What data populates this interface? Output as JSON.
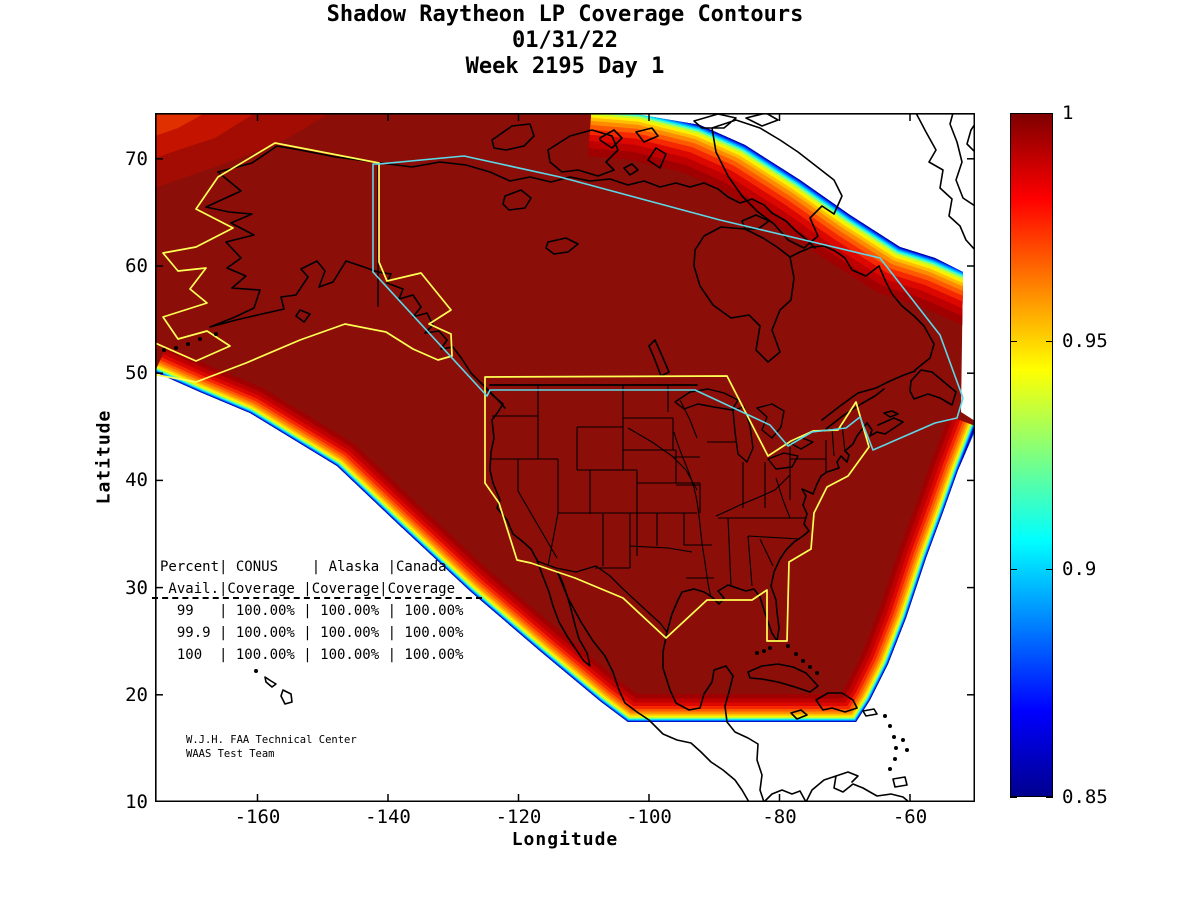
{
  "title": {
    "line1": "Shadow Raytheon LP Coverage Contours",
    "line2": "01/31/22",
    "line3": "Week 2195 Day 1"
  },
  "axes": {
    "xlabel": "Longitude",
    "ylabel": "Latitude"
  },
  "footer": {
    "line1": "W.J.H. FAA Technical Center",
    "line2": "WAAS Test Team"
  },
  "table": {
    "lines_header": [
      "Percent| CONUS    | Alaska |Canada",
      " Avail.|Coverage |Coverage|Coverage"
    ],
    "lines_rows": [
      "  99   | 100.00% | 100.00% | 100.00%",
      "  99.9 | 100.00% | 100.00% | 100.00%",
      "  100  | 100.00% | 100.00% | 100.00%"
    ]
  },
  "palette": {
    "interior_dark_red": "#8B0E08",
    "conus_alaska_boundary_yellow": "#FFFF55",
    "canada_boundary_cyan": "#5CD8E8",
    "coastline_black": "#000000",
    "background_white": "#FFFFFF"
  },
  "fringe_bands": [
    {
      "color": "#A00000",
      "width": 56
    },
    {
      "color": "#BE0000",
      "width": 47
    },
    {
      "color": "#DC0800",
      "width": 39
    },
    {
      "color": "#F52800",
      "width": 32
    },
    {
      "color": "#FF5A00",
      "width": 26
    },
    {
      "color": "#FF8C00",
      "width": 21
    },
    {
      "color": "#FFBE00",
      "width": 16.5
    },
    {
      "color": "#FFF000",
      "width": 13
    },
    {
      "color": "#C8FF28",
      "width": 10.2
    },
    {
      "color": "#64FFAA",
      "width": 7.8
    },
    {
      "color": "#00E6FF",
      "width": 5.8
    },
    {
      "color": "#0096FF",
      "width": 4.2
    },
    {
      "color": "#0040FF",
      "width": 2.8
    },
    {
      "color": "#0000B4",
      "width": 1.4
    }
  ],
  "chart_data": {
    "type": "heatmap",
    "title": "Shadow Raytheon LP Coverage Contours",
    "subtitle": [
      "01/31/22",
      "Week 2195 Day 1"
    ],
    "xlabel": "Longitude",
    "ylabel": "Latitude",
    "xlim": [
      -176,
      -50
    ],
    "ylim": [
      10,
      74.5
    ],
    "xticks": [
      -160,
      -140,
      -120,
      -100,
      -80,
      -60
    ],
    "yticks": [
      70,
      60,
      50,
      40,
      30,
      20,
      10
    ],
    "grid": false,
    "colorbar": {
      "min": 0.85,
      "max": 1.0,
      "ticks": [
        1,
        0.95,
        0.9,
        0.85
      ],
      "colormap": "jet",
      "stops": [
        {
          "color": "#00008F",
          "pos": 0
        },
        {
          "color": "#0000FF",
          "pos": 12.5
        },
        {
          "color": "#00FFFF",
          "pos": 37.5
        },
        {
          "color": "#FFFF00",
          "pos": 62.5
        },
        {
          "color": "#FF0000",
          "pos": 87.5
        },
        {
          "color": "#7F0000",
          "pos": 100
        }
      ]
    },
    "description": "Filled contour map of LP coverage availability over North America. Interior of the service volume is ~1.0 (dark red); values fall through jet-colormap bands (red, orange, yellow, green, cyan, blue) to 0.85 at the coverage edge along the Pacific southwest boundary, the southern boundary near latitude 17, the Atlantic southeast boundary, and the northeast boundary; white = below 0.85 / outside data. Yellow outlines: CONUS and Alaska service boundaries; cyan outline: Canada service boundary; black: coastlines and state borders.",
    "coverage_table": {
      "columns": [
        "Percent Avail.",
        "CONUS Coverage",
        "Alaska Coverage",
        "Canada Coverage"
      ],
      "rows": [
        [
          "99",
          "100.00%",
          "100.00%",
          "100.00%"
        ],
        [
          "99.9",
          "100.00%",
          "100.00%",
          "100.00%"
        ],
        [
          "100",
          "100.00%",
          "100.00%",
          "100.00%"
        ]
      ]
    }
  }
}
